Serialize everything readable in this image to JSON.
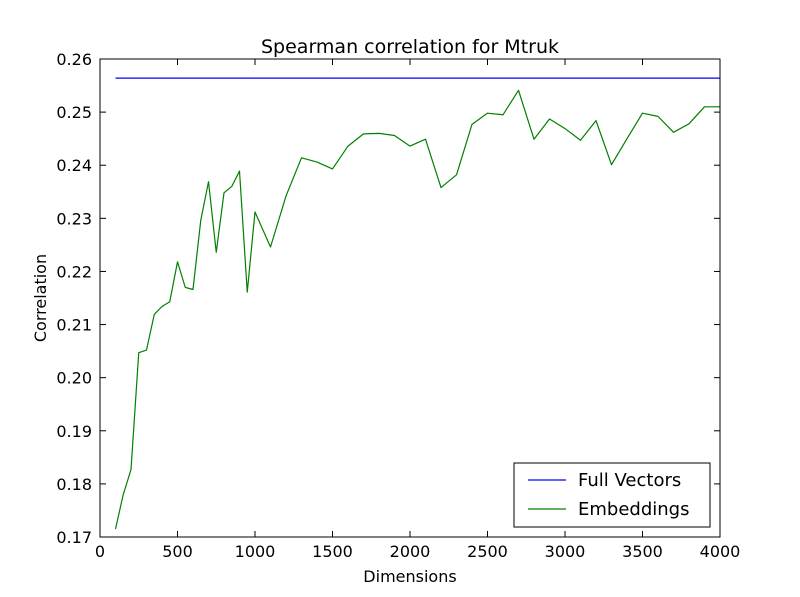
{
  "chart_data": {
    "type": "line",
    "title": "Spearman correlation for Mtruk",
    "xlabel": "Dimensions",
    "ylabel": "Correlation",
    "xlim": [
      0,
      4000
    ],
    "ylim": [
      0.17,
      0.26
    ],
    "xticks": [
      0,
      500,
      1000,
      1500,
      2000,
      2500,
      3000,
      3500,
      4000
    ],
    "xtick_labels": [
      "0",
      "500",
      "1000",
      "1500",
      "2000",
      "2500",
      "3000",
      "3500",
      "4000"
    ],
    "yticks": [
      0.17,
      0.18,
      0.19,
      0.2,
      0.21,
      0.22,
      0.23,
      0.24,
      0.25,
      0.26
    ],
    "ytick_labels": [
      "0.17",
      "0.18",
      "0.19",
      "0.20",
      "0.21",
      "0.22",
      "0.23",
      "0.24",
      "0.25",
      "0.26"
    ],
    "grid": false,
    "legend_position": "lower-right",
    "series": [
      {
        "name": "Full Vectors",
        "color": "#0000ff",
        "x": [
          100,
          4000
        ],
        "y": [
          0.2564,
          0.2564
        ]
      },
      {
        "name": "Embeddings",
        "color": "#008000",
        "x": [
          100,
          150,
          200,
          250,
          300,
          350,
          400,
          450,
          500,
          550,
          600,
          650,
          700,
          750,
          800,
          850,
          900,
          950,
          1000,
          1100,
          1200,
          1300,
          1400,
          1500,
          1600,
          1700,
          1800,
          1900,
          2000,
          2100,
          2200,
          2300,
          2400,
          2500,
          2600,
          2700,
          2800,
          2900,
          3000,
          3100,
          3200,
          3300,
          3400,
          3500,
          3600,
          3700,
          3800,
          3900,
          4000
        ],
        "y": [
          0.1715,
          0.178,
          0.1827,
          0.2047,
          0.2052,
          0.2119,
          0.2134,
          0.2143,
          0.2218,
          0.217,
          0.2166,
          0.2296,
          0.2369,
          0.2236,
          0.2348,
          0.236,
          0.2389,
          0.2161,
          0.2312,
          0.2246,
          0.2342,
          0.2414,
          0.2406,
          0.2393,
          0.2436,
          0.2459,
          0.246,
          0.2456,
          0.2436,
          0.2449,
          0.2358,
          0.2382,
          0.2477,
          0.2498,
          0.2495,
          0.2541,
          0.2449,
          0.2487,
          0.2469,
          0.2447,
          0.2484,
          0.2401,
          0.245,
          0.2498,
          0.2492,
          0.2462,
          0.2478,
          0.251,
          0.251
        ]
      }
    ]
  }
}
